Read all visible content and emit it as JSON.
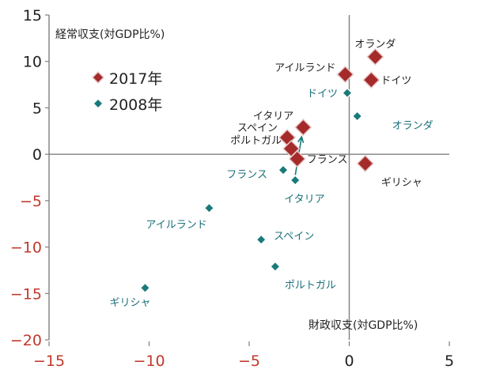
{
  "chart_data": {
    "type": "scatter",
    "title": "",
    "ylabel": "経常収支(対GDP比%)",
    "xlabel": "財政収支(対GDP比%)",
    "xlim": [
      -15,
      5
    ],
    "ylim": [
      -20,
      15
    ],
    "x_ticks": [
      -15,
      -10,
      -5,
      0,
      5
    ],
    "y_ticks": [
      15,
      10,
      5,
      0,
      -5,
      -10,
      -15,
      -20
    ],
    "x_tick_labels": [
      "−15",
      "−10",
      "−5",
      "0",
      "5"
    ],
    "y_tick_labels": [
      "15",
      "10",
      "5",
      "0",
      "−5",
      "−10",
      "−15",
      "−20"
    ],
    "colors": {
      "series_2017": "#a52a2a",
      "series_2017_label": "#222222",
      "series_2008": "#1a7a7a",
      "series_2008_label": "#1a6f7a",
      "negative_tick": "#c0392b",
      "axis": "#7f7f7f"
    },
    "legend_position": "left",
    "series": [
      {
        "name": "2017年",
        "marker": "diamond-large",
        "points": [
          {
            "label": "オランダ",
            "x": 1.3,
            "y": 10.5
          },
          {
            "label": "アイルランド",
            "x": -0.2,
            "y": 8.6
          },
          {
            "label": "ドイツ",
            "x": 1.1,
            "y": 8.0
          },
          {
            "label": "イタリア",
            "x": -2.3,
            "y": 2.9
          },
          {
            "label": "スペイン",
            "x": -3.1,
            "y": 1.8
          },
          {
            "label": "ポルトガル",
            "x": -2.9,
            "y": 0.6
          },
          {
            "label": "フランス",
            "x": -2.6,
            "y": -0.5
          },
          {
            "label": "ギリシャ",
            "x": 0.8,
            "y": -1.0
          }
        ]
      },
      {
        "name": "2008年",
        "marker": "diamond-small",
        "points": [
          {
            "label": "ドイツ",
            "x": -0.1,
            "y": 6.6
          },
          {
            "label": "オランダ",
            "x": 0.4,
            "y": 4.1
          },
          {
            "label": "フランス",
            "x": -3.3,
            "y": -1.7
          },
          {
            "label": "イタリア",
            "x": -2.7,
            "y": -2.8
          },
          {
            "label": "アイルランド",
            "x": -7.0,
            "y": -5.8
          },
          {
            "label": "スペイン",
            "x": -4.4,
            "y": -9.2
          },
          {
            "label": "ポルトガル",
            "x": -3.7,
            "y": -12.1
          },
          {
            "label": "ギリシャ",
            "x": -10.2,
            "y": -14.4
          }
        ]
      }
    ],
    "annotation_arrows": [
      {
        "from": "イタリア 2008年",
        "to": "イタリア 2017年"
      }
    ]
  }
}
